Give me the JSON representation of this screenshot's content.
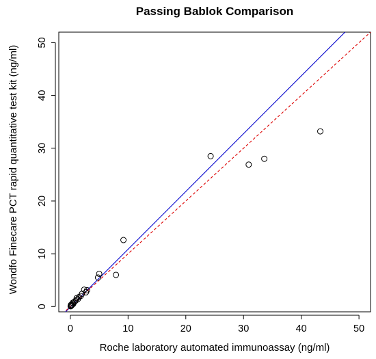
{
  "chart_data": {
    "type": "scatter",
    "title": "Passing Bablok Comparison",
    "xlabel": "Roche laboratory automated immunoassay (ng/ml)",
    "ylabel": "Wondfo Finecare PCT rapid quantitative test kit (ng/ml)",
    "xlim": [
      -2,
      52
    ],
    "ylim": [
      -1,
      52
    ],
    "xticks": [
      "0",
      "10",
      "20",
      "30",
      "40",
      "50"
    ],
    "yticks": [
      "0",
      "10",
      "20",
      "30",
      "40",
      "50"
    ],
    "points": [
      {
        "x": 43.3,
        "y": 33.2
      },
      {
        "x": 33.6,
        "y": 28.0
      },
      {
        "x": 30.9,
        "y": 26.9
      },
      {
        "x": 24.3,
        "y": 28.5
      },
      {
        "x": 9.2,
        "y": 12.6
      },
      {
        "x": 7.9,
        "y": 6.0
      },
      {
        "x": 5.0,
        "y": 6.2
      },
      {
        "x": 4.8,
        "y": 5.5
      },
      {
        "x": 2.9,
        "y": 3.1
      },
      {
        "x": 2.7,
        "y": 2.7
      },
      {
        "x": 2.4,
        "y": 3.2
      },
      {
        "x": 2.0,
        "y": 2.4
      },
      {
        "x": 1.8,
        "y": 2.0
      },
      {
        "x": 1.5,
        "y": 1.8
      },
      {
        "x": 1.3,
        "y": 1.4
      },
      {
        "x": 1.1,
        "y": 1.6
      },
      {
        "x": 1.0,
        "y": 1.2
      },
      {
        "x": 0.8,
        "y": 1.0
      },
      {
        "x": 0.6,
        "y": 0.8
      },
      {
        "x": 0.5,
        "y": 0.5
      },
      {
        "x": 0.4,
        "y": 0.7
      },
      {
        "x": 0.3,
        "y": 0.3
      },
      {
        "x": 0.2,
        "y": 0.2
      },
      {
        "x": 0.1,
        "y": 0.1
      },
      {
        "x": 0.1,
        "y": 0.3
      },
      {
        "x": 0.05,
        "y": 0.05
      }
    ],
    "lines": [
      {
        "style": "solid",
        "color": "#0000cc",
        "slope": 1.095,
        "intercept": -0.1
      },
      {
        "style": "dashed",
        "color": "#dd0000",
        "slope": 1.0,
        "intercept": 0.0
      }
    ],
    "grid": false,
    "point_marker": "open-circle"
  }
}
